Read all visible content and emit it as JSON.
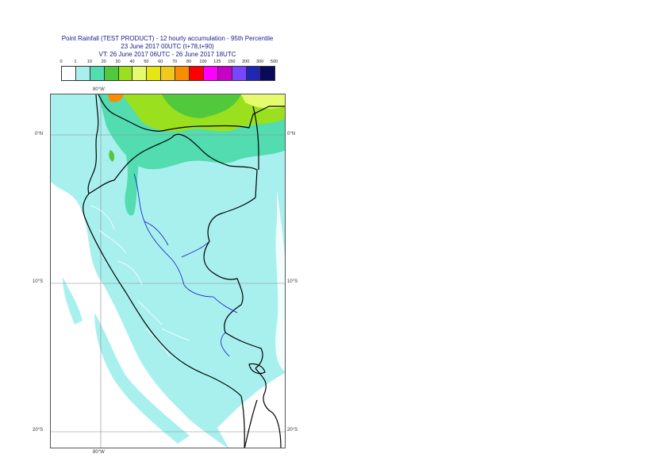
{
  "title": {
    "line1": "Point Rainfall (TEST PRODUCT) - 12 hourly accumulation - 95th Percentile",
    "line2": "23 June 2017 00UTC (t+78,t+90)",
    "line3": "VT: 26 June 2017 06UTC - 26 June 2017 18UTC"
  },
  "legend": {
    "labels": [
      "0",
      "1",
      "10",
      "20",
      "30",
      "40",
      "50",
      "60",
      "70",
      "80",
      "100",
      "125",
      "150",
      "200",
      "300",
      "500"
    ],
    "colors": [
      "#ffffff",
      "#a8f0ee",
      "#52dcb0",
      "#52c83c",
      "#9be01e",
      "#e6fa6e",
      "#e6e614",
      "#f0c81e",
      "#fa8c00",
      "#ff0000",
      "#ff00ff",
      "#c800c8",
      "#7846ff",
      "#1e28b4",
      "#0a0a5a"
    ]
  },
  "map": {
    "colors": {
      "ocean_light": "#a8f0ee",
      "sea_white": "#ffffff",
      "green_mid": "#52dcb0",
      "green": "#52c83c",
      "yellow_green": "#9be01e",
      "yellow": "#e6fa6e",
      "orange": "#fa8c00",
      "border": "#000000",
      "region": "#1414c8",
      "grid": "#888888"
    },
    "labels": {
      "lon_top": "80°W",
      "lon_bottom": "80°W",
      "lat_0_left": "0°N",
      "lat_0_right": "0°N",
      "lat_10_left": "10°S",
      "lat_10_right": "10°S",
      "lat_20_left": "20°S",
      "lat_20_right": "20°S"
    }
  }
}
